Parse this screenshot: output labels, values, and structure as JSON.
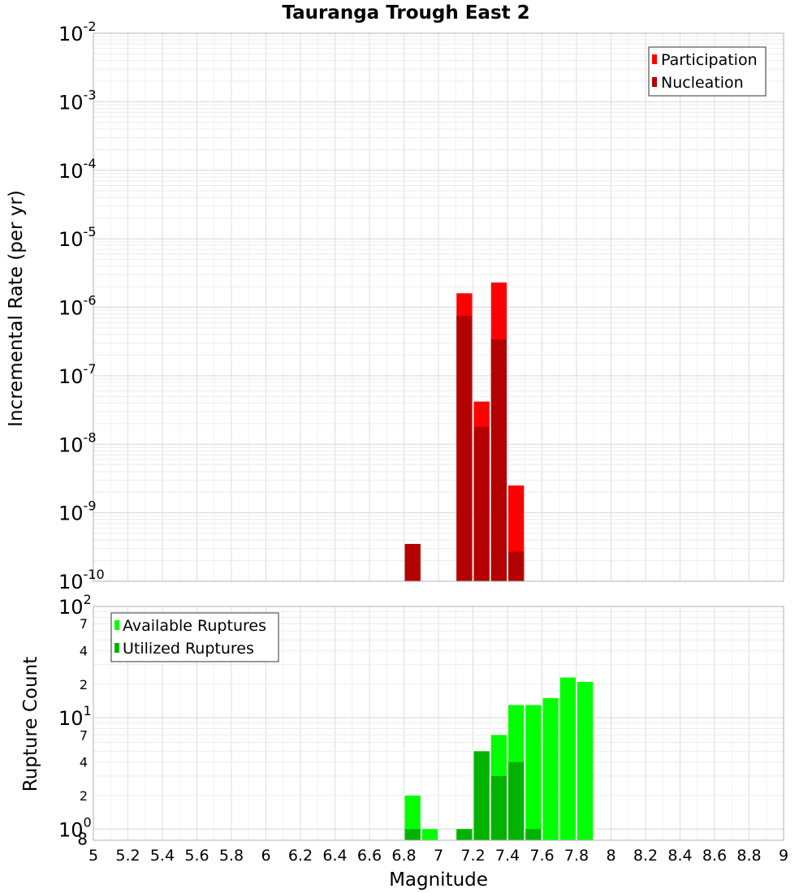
{
  "chart_data": [
    {
      "type": "bar",
      "title": "Tauranga Trough East 2",
      "ylabel": "Incremental Rate (per yr)",
      "yscale": "log",
      "ylim_exponents": [
        -10,
        -2
      ],
      "y_tick_base": "10",
      "y_tick_exponents": [
        "-10",
        "-9",
        "-8",
        "-7",
        "-6",
        "-5",
        "-4",
        "-3",
        "-2"
      ],
      "legend_position": "top-right",
      "series": [
        {
          "name": "Participation",
          "color": "#ff0000",
          "points": [
            [
              6.85,
              3.5e-10
            ],
            [
              7.15,
              1.6e-06
            ],
            [
              7.25,
              4.2e-08
            ],
            [
              7.35,
              2.3e-06
            ],
            [
              7.45,
              2.5e-09
            ]
          ]
        },
        {
          "name": "Nucleation",
          "color": "#b30000",
          "points": [
            [
              6.85,
              3.5e-10
            ],
            [
              7.15,
              7.5e-07
            ],
            [
              7.25,
              1.8e-08
            ],
            [
              7.35,
              3.4e-07
            ],
            [
              7.45,
              2.7e-10
            ]
          ]
        }
      ]
    },
    {
      "type": "bar",
      "ylabel": "Rupture Count",
      "xlabel": "Magnitude",
      "yscale": "log",
      "ylim_exponents": [
        -0.1,
        2
      ],
      "y_tick_base": "10",
      "y_major": [
        {
          "value": 1,
          "exp": "0"
        },
        {
          "value": 10,
          "exp": "1"
        },
        {
          "value": 100,
          "exp": "2"
        }
      ],
      "y_minor": [
        {
          "value": 0.8,
          "label": "8"
        },
        {
          "value": 2,
          "label": "2"
        },
        {
          "value": 4,
          "label": "4"
        },
        {
          "value": 7,
          "label": "7"
        },
        {
          "value": 20,
          "label": "2"
        },
        {
          "value": 40,
          "label": "4"
        },
        {
          "value": 70,
          "label": "7"
        }
      ],
      "legend_position": "top-left",
      "series": [
        {
          "name": "Available Ruptures",
          "color": "#00ff00",
          "points": [
            [
              6.85,
              2
            ],
            [
              6.95,
              1
            ],
            [
              7.15,
              1
            ],
            [
              7.25,
              5
            ],
            [
              7.35,
              7
            ],
            [
              7.45,
              13
            ],
            [
              7.55,
              13
            ],
            [
              7.65,
              15
            ],
            [
              7.75,
              23
            ],
            [
              7.85,
              21
            ]
          ]
        },
        {
          "name": "Utilized Ruptures",
          "color": "#00b300",
          "points": [
            [
              6.85,
              1
            ],
            [
              7.15,
              1
            ],
            [
              7.25,
              5
            ],
            [
              7.35,
              3
            ],
            [
              7.45,
              4
            ],
            [
              7.55,
              1
            ]
          ]
        }
      ],
      "x_ticks": [
        "5",
        "5.2",
        "5.4",
        "5.6",
        "5.8",
        "6",
        "6.2",
        "6.4",
        "6.6",
        "6.8",
        "7",
        "7.2",
        "7.4",
        "7.6",
        "7.8",
        "8",
        "8.2",
        "8.4",
        "8.6",
        "8.8",
        "9"
      ],
      "xlim": [
        5,
        9
      ]
    }
  ]
}
